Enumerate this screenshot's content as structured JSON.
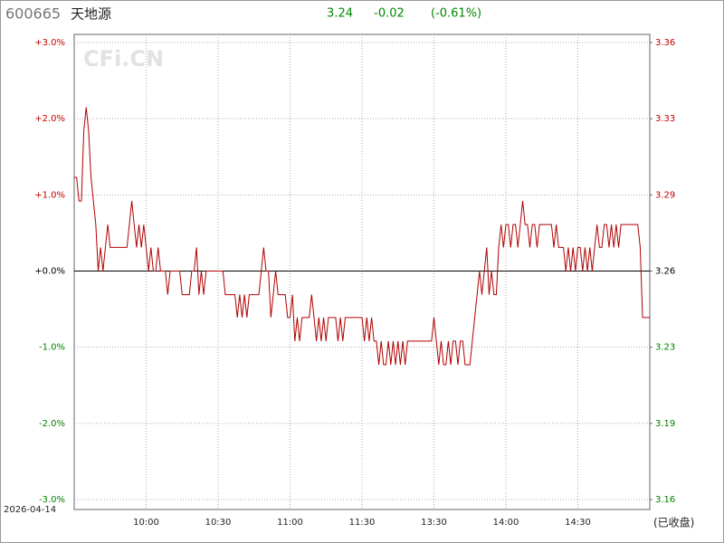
{
  "chart_data": {
    "type": "line",
    "code": "600665",
    "name": "天地源",
    "price": "3.24",
    "change": "-0.02",
    "change_pct": "(-0.61%)",
    "date": "2026-04-14",
    "status": "(已收盘)",
    "watermark": "CFi.CN",
    "series": [
      {
        "color": "#b00000",
        "values": [
          1.23,
          1.23,
          0.92,
          0.92,
          1.84,
          2.15,
          1.84,
          1.23,
          0.92,
          0.61,
          0,
          0.31,
          0,
          0.31,
          0.61,
          0.31,
          0.31,
          0.31,
          0.31,
          0.31,
          0.31,
          0.31,
          0.31,
          0.61,
          0.92,
          0.61,
          0.31,
          0.61,
          0.31,
          0.61,
          0.31,
          0,
          0.31,
          0,
          0,
          0.31,
          0,
          0,
          0,
          -0.31,
          0,
          0,
          0,
          0,
          0,
          -0.31,
          -0.31,
          -0.31,
          -0.31,
          0,
          0,
          0.31,
          -0.31,
          0,
          -0.31,
          0,
          0,
          0,
          0,
          0,
          0,
          0,
          0,
          -0.31,
          -0.31,
          -0.31,
          -0.31,
          -0.31,
          -0.61,
          -0.31,
          -0.61,
          -0.31,
          -0.61,
          -0.31,
          -0.31,
          -0.31,
          -0.31,
          -0.31,
          0,
          0.31,
          0,
          0,
          -0.61,
          -0.31,
          0,
          -0.31,
          -0.31,
          -0.31,
          -0.31,
          -0.61,
          -0.61,
          -0.31,
          -0.92,
          -0.61,
          -0.92,
          -0.61,
          -0.61,
          -0.61,
          -0.61,
          -0.31,
          -0.61,
          -0.92,
          -0.61,
          -0.92,
          -0.61,
          -0.92,
          -0.61,
          -0.61,
          -0.61,
          -0.61,
          -0.92,
          -0.61,
          -0.92,
          -0.61,
          -0.61,
          -0.61,
          -0.61,
          -0.61,
          -0.61,
          -0.61,
          -0.61,
          -0.92,
          -0.61,
          -0.92,
          -0.61,
          -0.92,
          -0.92,
          -1.23,
          -0.92,
          -1.23,
          -1.23,
          -0.92,
          -1.23,
          -0.92,
          -1.23,
          -0.92,
          -1.23,
          -0.92,
          -1.23,
          -0.92,
          -0.92,
          -0.92,
          -0.92,
          -0.92,
          -0.92,
          -0.92,
          -0.92,
          -0.92,
          -0.92,
          -0.92,
          -0.61,
          -0.92,
          -1.23,
          -0.92,
          -1.23,
          -1.23,
          -0.92,
          -1.23,
          -0.92,
          -0.92,
          -1.23,
          -0.92,
          -0.92,
          -1.23,
          -1.23,
          -1.23,
          -0.92,
          -0.61,
          -0.31,
          0,
          -0.31,
          0,
          0.31,
          -0.31,
          0,
          -0.31,
          -0.31,
          0.31,
          0.61,
          0.31,
          0.61,
          0.61,
          0.31,
          0.61,
          0.61,
          0.31,
          0.61,
          0.92,
          0.61,
          0.61,
          0.31,
          0.61,
          0.61,
          0.31,
          0.61,
          0.61,
          0.61,
          0.61,
          0.61,
          0.61,
          0.31,
          0.61,
          0.31,
          0.31,
          0.31,
          0,
          0.31,
          0,
          0.31,
          0,
          0.31,
          0.31,
          0,
          0.31,
          0,
          0.31,
          0,
          0.31,
          0.61,
          0.31,
          0.31,
          0.61,
          0.61,
          0.31,
          0.61,
          0.31,
          0.61,
          0.31,
          0.61,
          0.61,
          0.61,
          0.61,
          0.61,
          0.61,
          0.61,
          0.61,
          0.31,
          -0.61,
          -0.61,
          -0.61,
          -0.61
        ]
      }
    ],
    "xlim": [
      0,
      240
    ],
    "xticks": [
      {
        "value": 30,
        "label": "10:00"
      },
      {
        "value": 60,
        "label": "10:30"
      },
      {
        "value": 90,
        "label": "11:00"
      },
      {
        "value": 120,
        "label": "11:30"
      },
      {
        "value": 150,
        "label": "13:30"
      },
      {
        "value": 180,
        "label": "14:00"
      },
      {
        "value": 210,
        "label": "14:30"
      }
    ],
    "ylim": [
      -3,
      3
    ],
    "yticks": [
      {
        "value": 3,
        "label": "+3.0%"
      },
      {
        "value": 2,
        "label": "+2.0%"
      },
      {
        "value": 1,
        "label": "+1.0%"
      },
      {
        "value": 0,
        "label": "+0.0%"
      },
      {
        "value": -1,
        "label": "-1.0%"
      },
      {
        "value": -2,
        "label": "-2.0%"
      },
      {
        "value": -3,
        "label": "-3.0%"
      }
    ],
    "y2lim": [
      3.1622,
      3.3578
    ],
    "y2ticks": [
      {
        "value": 3.3578,
        "label": "3.36"
      },
      {
        "value": 3.3252,
        "label": "3.33"
      },
      {
        "value": 3.2926,
        "label": "3.29"
      },
      {
        "value": 3.26,
        "label": "3.26"
      },
      {
        "value": 3.2274,
        "label": "3.23"
      },
      {
        "value": 3.1948,
        "label": "3.19"
      },
      {
        "value": 3.1622,
        "label": "3.16"
      }
    ],
    "grid": true
  }
}
